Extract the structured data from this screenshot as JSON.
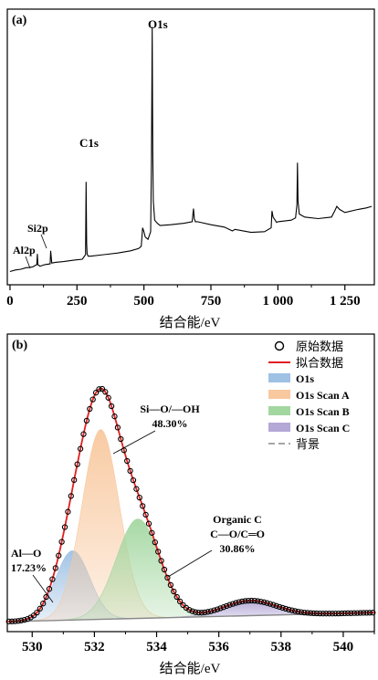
{
  "chart_data": [
    {
      "panel_label": "(a)",
      "type": "line",
      "xlabel": "结合能/eV",
      "ylabel": "",
      "xlim": [
        -10,
        1360
      ],
      "xticks": [
        0,
        250,
        500,
        750,
        1000,
        1250
      ],
      "xtick_labels": [
        "0",
        "250",
        "500",
        "750",
        "1 000",
        "1 250"
      ],
      "grid": false,
      "series": [
        {
          "x": [
            0,
            20,
            40,
            60,
            75,
            85,
            100,
            102,
            104,
            112,
            130,
            150,
            152,
            156,
            170,
            200,
            240,
            270,
            282,
            284,
            286,
            288,
            292,
            300,
            350,
            400,
            450,
            480,
            490,
            495,
            500,
            505,
            515,
            525,
            528,
            531,
            533,
            535,
            540,
            550,
            560,
            600,
            650,
            680,
            685,
            688,
            692,
            700,
            750,
            800,
            830,
            840,
            900,
            950,
            975,
            978,
            982,
            995,
            1000,
            1050,
            1066,
            1071,
            1073,
            1075,
            1080,
            1100,
            1150,
            1200,
            1212,
            1220,
            1230,
            1250,
            1300,
            1330,
            1350
          ],
          "y": [
            3,
            5,
            6,
            8,
            8.5,
            9,
            12,
            26,
            12,
            10,
            12,
            13,
            30,
            14,
            15,
            16,
            18,
            19,
            25,
            120,
            40,
            26,
            23,
            23,
            25,
            27,
            30,
            33,
            36,
            60,
            55,
            48,
            45,
            55,
            150,
            322,
            160,
            95,
            70,
            66,
            63,
            64,
            66,
            68,
            85,
            72,
            68,
            68,
            64,
            61,
            56,
            58,
            54,
            55,
            60,
            82,
            74,
            67,
            68,
            70,
            73,
            90,
            145,
            95,
            78,
            74,
            72,
            74,
            82,
            88,
            84,
            80,
            84,
            86,
            88
          ]
        }
      ],
      "annotations": [
        {
          "text": "O1s",
          "x": 531
        },
        {
          "text": "C1s",
          "x": 284
        },
        {
          "text": "Si2p",
          "x": 102
        },
        {
          "text": "Al2p",
          "x": 75
        }
      ]
    },
    {
      "panel_label": "(b)",
      "type": "line",
      "xlabel": "结合能/eV",
      "ylabel": "",
      "xlim": [
        529.2,
        541
      ],
      "xticks": [
        530,
        532,
        534,
        536,
        538,
        540
      ],
      "xtick_labels": [
        "530",
        "532",
        "534",
        "536",
        "538",
        "540"
      ],
      "legend_position": "top-right",
      "grid": false,
      "components": [
        {
          "name": "O1s",
          "type": "gaussian",
          "center": 531.3,
          "height": 23,
          "sigma": 0.55,
          "color": "#9fc1e4"
        },
        {
          "name": "O1s Scan A",
          "type": "gaussian",
          "center": 532.2,
          "height": 63,
          "sigma": 0.6,
          "color": "#f8c89e"
        },
        {
          "name": "O1s Scan B",
          "type": "gaussian",
          "center": 533.4,
          "height": 33,
          "sigma": 0.7,
          "color": "#a3d7a0"
        },
        {
          "name": "O1s Scan C",
          "type": "gaussian",
          "center": 537,
          "height": 5,
          "sigma": 0.85,
          "color": "#b4a8d6"
        }
      ],
      "background": {
        "name": "背景",
        "type": "linear",
        "x": [
          529.2,
          541
        ],
        "y": [
          1.5,
          4.5
        ],
        "color": "#888888"
      },
      "fit_name": "拟合数据",
      "fit_color": "#e02020",
      "raw_name": "原始数据",
      "annotations": [
        {
          "lines": [
            "Si—O/—OH",
            "48.30%"
          ]
        },
        {
          "lines": [
            "Organic C",
            "C—O/C═O",
            "30.86%"
          ]
        },
        {
          "lines": [
            "Al—O",
            "17.23%"
          ]
        }
      ]
    }
  ]
}
